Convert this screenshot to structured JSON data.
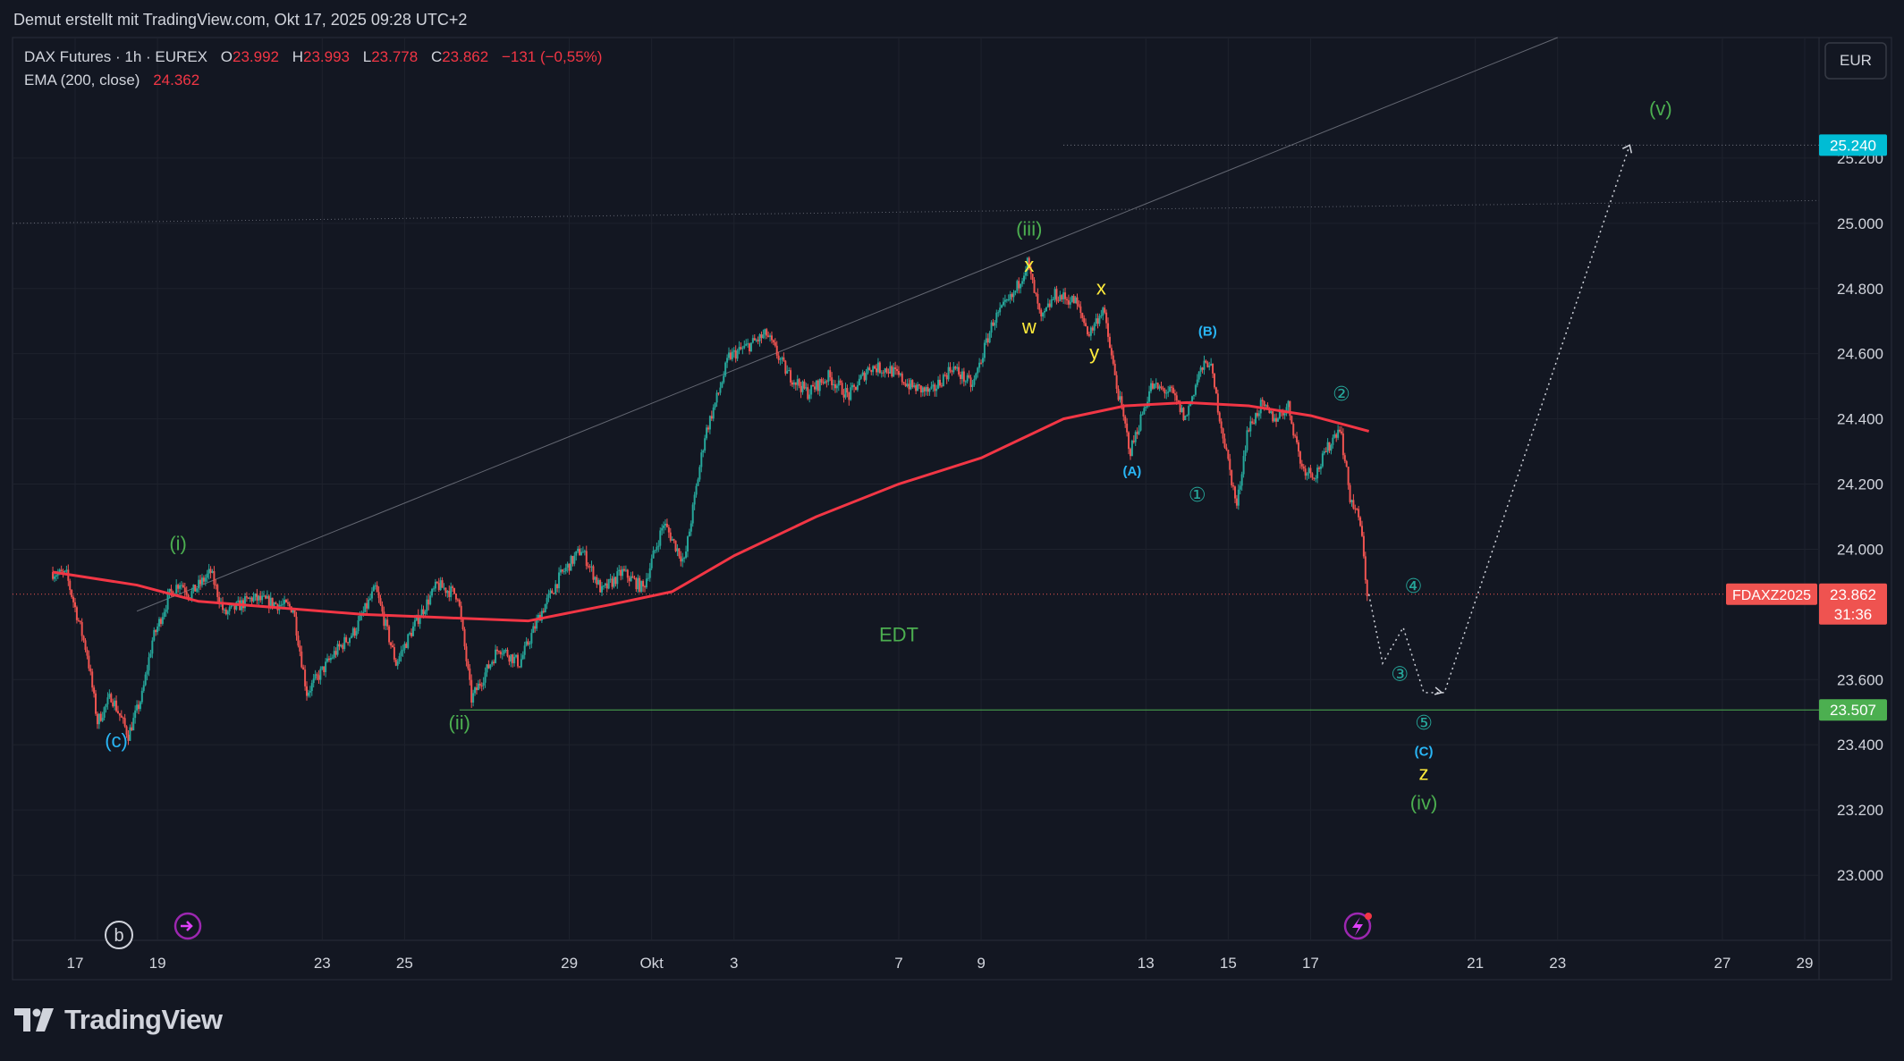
{
  "header": {
    "text": "Demut erstellt mit TradingView.com, Okt 17, 2025 09:28 UTC+2"
  },
  "legend": {
    "symbol": "DAX Futures · 1h · EUREX",
    "o_label": "O",
    "o_value": "23.992",
    "h_label": "H",
    "h_value": "23.993",
    "l_label": "L",
    "l_value": "23.778",
    "c_label": "C",
    "c_value": "23.862",
    "change": "−131 (−0,55%)",
    "ema_label": "EMA (200, close)",
    "ema_value": "24.362"
  },
  "currency_button": "EUR",
  "footer": {
    "brand": "TradingView"
  },
  "colors": {
    "background": "#131722",
    "grid": "#1e222d",
    "text": "#d1d4dc",
    "up": "#26a69a",
    "down": "#ef5350",
    "ema": "#f23645",
    "green_label": "#4caf50",
    "blue_label": "#29b6f6",
    "yellow_label": "#ffeb3b",
    "teal_label": "#26a69a",
    "target_badge": "#00bcd4"
  },
  "chart_data": {
    "type": "candlestick",
    "title": "DAX Futures · 1h · EUREX",
    "ylim": [
      22800,
      25570
    ],
    "y_ticks": [
      "25.200",
      "25.000",
      "24.800",
      "24.600",
      "24.400",
      "24.200",
      "24.000",
      "23.600",
      "23.400",
      "23.200",
      "23.000"
    ],
    "y_tick_values": [
      25200,
      25000,
      24800,
      24600,
      24400,
      24200,
      24000,
      23600,
      23400,
      23200,
      23000
    ],
    "x_ticks": [
      "17",
      "19",
      "23",
      "25",
      "29",
      "Okt",
      "3",
      "7",
      "9",
      "13",
      "15",
      "17",
      "21",
      "23",
      "27",
      "29"
    ],
    "x_tick_dates": [
      "2025-09-17",
      "2025-09-19",
      "2025-09-23",
      "2025-09-25",
      "2025-09-29",
      "2025-10-01",
      "2025-10-03",
      "2025-10-07",
      "2025-10-09",
      "2025-10-13",
      "2025-10-15",
      "2025-10-17",
      "2025-10-21",
      "2025-10-23",
      "2025-10-27",
      "2025-10-29"
    ],
    "price_path": [
      [
        "2025-09-16 11:00",
        23930
      ],
      [
        "2025-09-16 20:00",
        23920
      ],
      [
        "2025-09-17 08:00",
        23680
      ],
      [
        "2025-09-17 14:00",
        23470
      ],
      [
        "2025-09-17 22:00",
        23550
      ],
      [
        "2025-09-18 08:00",
        23430
      ],
      [
        "2025-09-18 16:00",
        23550
      ],
      [
        "2025-09-18 22:00",
        23720
      ],
      [
        "2025-09-19 08:00",
        23860
      ],
      [
        "2025-09-19 14:00",
        23900
      ],
      [
        "2025-09-19 20:00",
        23860
      ],
      [
        "2025-09-20 08:00",
        23930
      ],
      [
        "2025-09-20 16:00",
        23800
      ],
      [
        "2025-09-21 08:00",
        23850
      ],
      [
        "2025-09-22 08:00",
        23820
      ],
      [
        "2025-09-22 16:00",
        23560
      ],
      [
        "2025-09-23 08:00",
        23680
      ],
      [
        "2025-09-23 20:00",
        23750
      ],
      [
        "2025-09-24 08:00",
        23880
      ],
      [
        "2025-09-24 20:00",
        23650
      ],
      [
        "2025-09-25 08:00",
        23780
      ],
      [
        "2025-09-25 20:00",
        23890
      ],
      [
        "2025-09-26 08:00",
        23860
      ],
      [
        "2025-09-26 16:00",
        23540
      ],
      [
        "2025-09-27 08:00",
        23700
      ],
      [
        "2025-09-27 20:00",
        23650
      ],
      [
        "2025-09-28 08:00",
        23800
      ],
      [
        "2025-09-28 20:00",
        23920
      ],
      [
        "2025-09-29 08:00",
        24000
      ],
      [
        "2025-09-29 20:00",
        23870
      ],
      [
        "2025-09-30 08:00",
        23930
      ],
      [
        "2025-09-30 20:00",
        23880
      ],
      [
        "2025-10-01 08:00",
        24080
      ],
      [
        "2025-10-01 20:00",
        23960
      ],
      [
        "2025-10-02 08:00",
        24350
      ],
      [
        "2025-10-02 16:00",
        24480
      ],
      [
        "2025-10-02 22:00",
        24590
      ],
      [
        "2025-10-03 08:00",
        24620
      ],
      [
        "2025-10-03 20:00",
        24660
      ],
      [
        "2025-10-04 08:00",
        24540
      ],
      [
        "2025-10-04 20:00",
        24480
      ],
      [
        "2025-10-05 08:00",
        24530
      ],
      [
        "2025-10-05 20:00",
        24470
      ],
      [
        "2025-10-06 08:00",
        24560
      ],
      [
        "2025-10-06 20:00",
        24550
      ],
      [
        "2025-10-07 08:00",
        24500
      ],
      [
        "2025-10-07 20:00",
        24480
      ],
      [
        "2025-10-08 08:00",
        24560
      ],
      [
        "2025-10-08 20:00",
        24500
      ],
      [
        "2025-10-09 08:00",
        24700
      ],
      [
        "2025-10-09 20:00",
        24780
      ],
      [
        "2025-10-10 04:00",
        24880
      ],
      [
        "2025-10-10 12:00",
        24700
      ],
      [
        "2025-10-10 20:00",
        24780
      ],
      [
        "2025-10-11 08:00",
        24760
      ],
      [
        "2025-10-11 16:00",
        24660
      ],
      [
        "2025-10-12 00:00",
        24740
      ],
      [
        "2025-10-12 08:00",
        24500
      ],
      [
        "2025-10-12 16:00",
        24300
      ],
      [
        "2025-10-13 04:00",
        24500
      ],
      [
        "2025-10-13 16:00",
        24480
      ],
      [
        "2025-10-14 00:00",
        24400
      ],
      [
        "2025-10-14 08:00",
        24540
      ],
      [
        "2025-10-14 14:00",
        24580
      ],
      [
        "2025-10-14 22:00",
        24350
      ],
      [
        "2025-10-15 06:00",
        24130
      ],
      [
        "2025-10-15 12:00",
        24360
      ],
      [
        "2025-10-15 20:00",
        24440
      ],
      [
        "2025-10-16 04:00",
        24400
      ],
      [
        "2025-10-16 12:00",
        24440
      ],
      [
        "2025-10-16 20:00",
        24250
      ],
      [
        "2025-10-17 04:00",
        24230
      ],
      [
        "2025-10-17 12:00",
        24320
      ],
      [
        "2025-10-17 18:00",
        24380
      ],
      [
        "2025-10-18 00:00",
        24160
      ],
      [
        "2025-10-18 06:00",
        24080
      ],
      [
        "2025-10-18 10:00",
        23862
      ]
    ],
    "ema_200": [
      [
        "2025-09-16 11:00",
        23930
      ],
      [
        "2025-09-18 12:00",
        23890
      ],
      [
        "2025-09-20 00:00",
        23840
      ],
      [
        "2025-09-22 00:00",
        23820
      ],
      [
        "2025-09-24 00:00",
        23800
      ],
      [
        "2025-09-26 00:00",
        23790
      ],
      [
        "2025-09-28 00:00",
        23780
      ],
      [
        "2025-09-30 00:00",
        23830
      ],
      [
        "2025-10-01 12:00",
        23870
      ],
      [
        "2025-10-03 00:00",
        23980
      ],
      [
        "2025-10-05 00:00",
        24100
      ],
      [
        "2025-10-07 00:00",
        24200
      ],
      [
        "2025-10-09 00:00",
        24280
      ],
      [
        "2025-10-11 00:00",
        24400
      ],
      [
        "2025-10-12 12:00",
        24440
      ],
      [
        "2025-10-14 00:00",
        24450
      ],
      [
        "2025-10-15 12:00",
        24440
      ],
      [
        "2025-10-17 00:00",
        24410
      ],
      [
        "2025-10-18 10:00",
        24362
      ]
    ],
    "trendline_upper": [
      [
        "2025-09-18 12:00",
        23810
      ],
      [
        "2025-10-23 00:00",
        25570
      ]
    ],
    "trendline_lower": [
      [
        "2025-09-16 11:00",
        25000
      ],
      [
        "2025-11-01 00:00",
        25070
      ]
    ],
    "projection_path": [
      [
        "2025-10-18 10:00",
        23862
      ],
      [
        "2025-10-18 18:00",
        23650
      ],
      [
        "2025-10-19 06:00",
        23760
      ],
      [
        "2025-10-19 18:00",
        23560
      ],
      [
        "2025-10-20 06:00",
        23560
      ],
      [
        "2025-10-24 18:00",
        25240
      ]
    ],
    "levels": [
      {
        "price": 25240,
        "label": "25.240",
        "style": "dotted",
        "from": "2025-10-11 00:00"
      },
      {
        "price": 23862,
        "label": "23.862",
        "style": "dotted-red"
      },
      {
        "price": 23507,
        "label": "23.507",
        "style": "solid-green",
        "from": "2025-09-26 08:00"
      }
    ],
    "current_price_badge": {
      "symbol": "FDAXZ2025",
      "price": "23.862",
      "countdown": "31:36"
    },
    "annotations": [
      {
        "text": "(i)",
        "x": "2025-09-19 12:00",
        "y": 23997,
        "color": "green"
      },
      {
        "text": "(ii)",
        "x": "2025-09-26 08:00",
        "y": 23447,
        "color": "green"
      },
      {
        "text": "(iii)",
        "x": "2025-10-10 04:00",
        "y": 24962,
        "color": "green"
      },
      {
        "text": "(iv)",
        "x": "2025-10-19 18:00",
        "y": 23202,
        "color": "green"
      },
      {
        "text": "(v)",
        "x": "2025-10-25 12:00",
        "y": 25332,
        "color": "green"
      },
      {
        "text": "EDT",
        "x": "2025-10-07 00:00",
        "y": 23717,
        "color": "green"
      },
      {
        "text": "(c)",
        "x": "2025-09-18 00:00",
        "y": 23393,
        "color": "blue"
      },
      {
        "text": "(A)",
        "x": "2025-10-12 16:00",
        "y": 24226,
        "color": "blue"
      },
      {
        "text": "(B)",
        "x": "2025-10-14 12:00",
        "y": 24656,
        "color": "blue"
      },
      {
        "text": "(C)",
        "x": "2025-10-19 18:00",
        "y": 23366,
        "color": "blue"
      },
      {
        "text": "x",
        "x": "2025-10-10 04:00",
        "y": 24852,
        "color": "yellow"
      },
      {
        "text": "w",
        "x": "2025-10-10 04:00",
        "y": 24662,
        "color": "yellow"
      },
      {
        "text": "x",
        "x": "2025-10-11 22:00",
        "y": 24782,
        "color": "yellow"
      },
      {
        "text": "y",
        "x": "2025-10-11 18:00",
        "y": 24582,
        "color": "yellow"
      },
      {
        "text": "z",
        "x": "2025-10-19 18:00",
        "y": 23292,
        "color": "yellow"
      },
      {
        "text": "①",
        "x": "2025-10-14 06:00",
        "y": 24147,
        "color": "teal"
      },
      {
        "text": "②",
        "x": "2025-10-17 18:00",
        "y": 24457,
        "color": "teal"
      },
      {
        "text": "③",
        "x": "2025-10-19 04:00",
        "y": 23597,
        "color": "teal"
      },
      {
        "text": "④",
        "x": "2025-10-19 12:00",
        "y": 23867,
        "color": "teal"
      },
      {
        "text": "⑤",
        "x": "2025-10-19 18:00",
        "y": 23447,
        "color": "teal"
      }
    ]
  }
}
